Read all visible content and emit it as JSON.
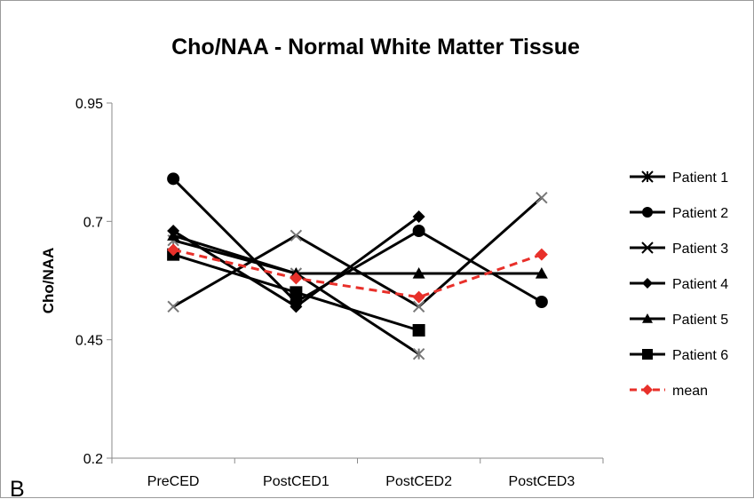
{
  "panel_label": "B",
  "chart_data": {
    "type": "line",
    "title": "Cho/NAA - Normal White Matter Tissue",
    "xlabel": "",
    "ylabel": "Cho/NAA",
    "categories": [
      "PreCED",
      "PostCED1",
      "PostCED2",
      "PostCED3"
    ],
    "yticks": [
      "0.2",
      "0.45",
      "0.7",
      "0.95"
    ],
    "ylim": [
      0.2,
      0.95
    ],
    "grid": false,
    "legend_position": "right",
    "series": [
      {
        "name": "Patient 1",
        "marker": "asterisk",
        "color": "#000000",
        "dashed": false,
        "values": [
          0.66,
          0.59,
          0.42,
          null
        ]
      },
      {
        "name": "Patient 2",
        "marker": "circle",
        "color": "#000000",
        "dashed": false,
        "values": [
          0.79,
          0.53,
          0.68,
          0.53
        ]
      },
      {
        "name": "Patient 3",
        "marker": "x",
        "color": "#000000",
        "dashed": false,
        "values": [
          0.52,
          0.67,
          0.52,
          0.75
        ]
      },
      {
        "name": "Patient 4",
        "marker": "diamond",
        "color": "#000000",
        "dashed": false,
        "values": [
          0.68,
          0.52,
          0.71,
          null
        ]
      },
      {
        "name": "Patient 5",
        "marker": "triangle",
        "color": "#000000",
        "dashed": false,
        "values": [
          0.67,
          0.59,
          0.59,
          0.59
        ]
      },
      {
        "name": "Patient 6",
        "marker": "square",
        "color": "#000000",
        "dashed": false,
        "values": [
          0.63,
          0.55,
          0.47,
          null
        ]
      },
      {
        "name": "mean",
        "marker": "diamond",
        "color": "#e8302a",
        "dashed": true,
        "values": [
          0.64,
          0.58,
          0.54,
          0.63
        ]
      }
    ]
  }
}
